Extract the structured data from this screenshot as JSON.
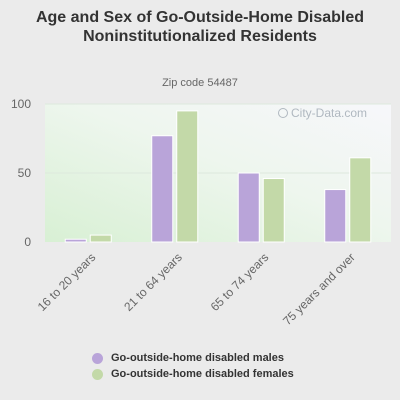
{
  "chart_data": {
    "type": "bar",
    "title": "Age and Sex of Go-Outside-Home Disabled Noninstitutionalized Residents",
    "subtitle": "Zip code 54487",
    "categories": [
      "16 to 20 years",
      "21 to 64 years",
      "65 to 74 years",
      "75 years and over"
    ],
    "series": [
      {
        "name": "Go-outside-home disabled males",
        "values": [
          2,
          77,
          50,
          38
        ],
        "color": "#b9a4d9"
      },
      {
        "name": "Go-outside-home disabled females",
        "values": [
          5,
          95,
          46,
          61
        ],
        "color": "#c3d9a8"
      }
    ],
    "ylim": [
      0,
      100
    ],
    "yticks": [
      0,
      50,
      100
    ],
    "grid": true,
    "legend": "bottom",
    "watermark": "City-Data.com"
  }
}
